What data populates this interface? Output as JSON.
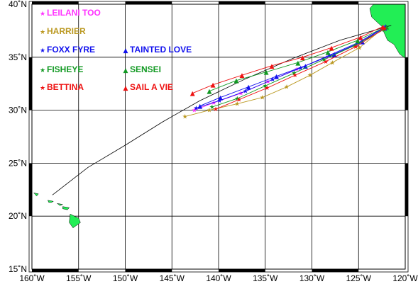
{
  "map": {
    "lon_range": [
      -160,
      -120
    ],
    "lat_range": [
      15,
      40
    ],
    "land_color": "#22ee55",
    "frame_color": "#000000",
    "gridline_color": "#000000"
  },
  "ticks": {
    "x": [
      {
        "value": -160,
        "label": "160˚W"
      },
      {
        "value": -155,
        "label": "155˚W"
      },
      {
        "value": -150,
        "label": "150˚W"
      },
      {
        "value": -145,
        "label": "145˚W"
      },
      {
        "value": -140,
        "label": "140˚W"
      },
      {
        "value": -135,
        "label": "135˚W"
      },
      {
        "value": -130,
        "label": "130˚W"
      },
      {
        "value": -125,
        "label": "125˚W"
      },
      {
        "value": -120,
        "label": "120˚W"
      }
    ],
    "y": [
      {
        "value": 40,
        "label": "40˚N"
      },
      {
        "value": 35,
        "label": "35˚N"
      },
      {
        "value": 30,
        "label": "30˚N"
      },
      {
        "value": 25,
        "label": "25˚N"
      },
      {
        "value": 20,
        "label": "20˚N"
      },
      {
        "value": 15,
        "label": "15˚N"
      }
    ]
  },
  "legend": [
    {
      "name": "LEILANI TOO",
      "color": "#ff33ff",
      "symbol": "star"
    },
    {
      "name": "HARRIER",
      "color": "#bb9922",
      "symbol": "star"
    },
    {
      "name": "FOXX FYRE",
      "color": "#1111ee",
      "symbol": "star"
    },
    {
      "name": "TAINTED LOVE",
      "color": "#1111ee",
      "symbol": "triangle"
    },
    {
      "name": "FISHEYE",
      "color": "#119922",
      "symbol": "star"
    },
    {
      "name": "SENSEI",
      "color": "#119922",
      "symbol": "triangle"
    },
    {
      "name": "BETTINA",
      "color": "#ee1111",
      "symbol": "star"
    },
    {
      "name": "SAIL A VIE",
      "color": "#ee1111",
      "symbol": "triangle"
    }
  ],
  "chart_data": {
    "type": "scatter",
    "great_circle": [
      [
        -121.5,
        38.0
      ],
      [
        -127,
        36.6
      ],
      [
        -132,
        34.9
      ],
      [
        -137,
        33.0
      ],
      [
        -142,
        30.9
      ],
      [
        -146,
        28.9
      ],
      [
        -150,
        26.7
      ],
      [
        -154,
        24.6
      ],
      [
        -157.8,
        22.0
      ]
    ],
    "series": [
      {
        "name": "LEILANI TOO",
        "points": [
          [
            -122.3,
            37.8
          ],
          [
            -125.2,
            36.2
          ],
          [
            -128.4,
            35.0
          ],
          [
            -131.6,
            33.9
          ],
          [
            -134.7,
            32.7
          ],
          [
            -137.6,
            31.6
          ],
          [
            -140.5,
            30.7
          ],
          [
            -142.6,
            30.0
          ]
        ]
      },
      {
        "name": "HARRIER",
        "points": [
          [
            -122.4,
            37.7
          ],
          [
            -124.9,
            35.9
          ],
          [
            -127.8,
            34.5
          ],
          [
            -130.2,
            33.3
          ],
          [
            -132.7,
            32.2
          ],
          [
            -135.3,
            31.2
          ],
          [
            -138.0,
            30.6
          ],
          [
            -141.0,
            30.0
          ],
          [
            -143.6,
            29.4
          ]
        ]
      },
      {
        "name": "FOXX FYRE",
        "points": [
          [
            -122.1,
            37.9
          ],
          [
            -125.0,
            36.4
          ],
          [
            -128.1,
            35.2
          ],
          [
            -131.2,
            34.0
          ],
          [
            -134.2,
            32.9
          ],
          [
            -137.1,
            31.8
          ],
          [
            -139.9,
            30.9
          ],
          [
            -142.4,
            30.2
          ]
        ]
      },
      {
        "name": "TAINTED LOVE",
        "points": [
          [
            -122.2,
            37.8
          ],
          [
            -124.6,
            36.5
          ],
          [
            -127.6,
            35.3
          ],
          [
            -130.7,
            34.2
          ],
          [
            -133.8,
            33.2
          ],
          [
            -136.8,
            32.2
          ],
          [
            -139.8,
            31.2
          ],
          [
            -142.0,
            30.4
          ]
        ]
      },
      {
        "name": "FISHEYE",
        "points": [
          [
            -122.3,
            37.6
          ],
          [
            -125.4,
            36.1
          ],
          [
            -128.7,
            34.8
          ],
          [
            -131.9,
            33.5
          ],
          [
            -135.0,
            32.3
          ],
          [
            -138.0,
            31.1
          ],
          [
            -140.7,
            30.3
          ]
        ]
      },
      {
        "name": "SENSEI",
        "points": [
          [
            -122.0,
            37.9
          ],
          [
            -125.1,
            36.6
          ],
          [
            -128.3,
            35.5
          ],
          [
            -131.5,
            34.5
          ],
          [
            -134.9,
            33.6
          ],
          [
            -138.1,
            32.8
          ],
          [
            -141.0,
            31.8
          ]
        ]
      },
      {
        "name": "BETTINA",
        "points": [
          [
            -122.2,
            37.7
          ],
          [
            -125.3,
            36.0
          ],
          [
            -128.5,
            34.6
          ],
          [
            -131.8,
            33.3
          ],
          [
            -134.8,
            32.1
          ],
          [
            -137.8,
            31.0
          ],
          [
            -140.3,
            30.1
          ]
        ]
      },
      {
        "name": "SAIL A VIE",
        "points": [
          [
            -122.4,
            37.9
          ],
          [
            -124.8,
            36.9
          ],
          [
            -127.9,
            35.9
          ],
          [
            -131.0,
            35.0
          ],
          [
            -134.3,
            34.2
          ],
          [
            -137.5,
            33.3
          ],
          [
            -140.6,
            32.4
          ],
          [
            -142.8,
            31.6
          ]
        ]
      }
    ],
    "land": {
      "california": [
        [
          -123.4,
          40
        ],
        [
          -120,
          40
        ],
        [
          -120,
          34.9
        ],
        [
          -120.6,
          35.3
        ],
        [
          -121.2,
          36.2
        ],
        [
          -121.9,
          36.6
        ],
        [
          -122.4,
          37.6
        ],
        [
          -122.5,
          37.9
        ],
        [
          -123.0,
          38.3
        ],
        [
          -123.6,
          38.8
        ],
        [
          -123.8,
          39.6
        ]
      ],
      "hawaii": [
        [
          [
            -155.9,
            20.2
          ],
          [
            -155.0,
            19.8
          ],
          [
            -154.8,
            19.4
          ],
          [
            -155.6,
            18.9
          ],
          [
            -156.0,
            19.4
          ]
        ],
        [
          [
            -156.7,
            20.9
          ],
          [
            -156.0,
            20.8
          ],
          [
            -156.2,
            20.6
          ],
          [
            -156.7,
            20.7
          ]
        ],
        [
          [
            -157.3,
            21.2
          ],
          [
            -156.7,
            21.1
          ],
          [
            -157.0,
            21.0
          ]
        ],
        [
          [
            -158.3,
            21.5
          ],
          [
            -157.7,
            21.4
          ],
          [
            -157.9,
            21.3
          ],
          [
            -158.2,
            21.3
          ]
        ],
        [
          [
            -159.8,
            22.2
          ],
          [
            -159.3,
            22.1
          ],
          [
            -159.5,
            21.9
          ]
        ]
      ]
    }
  }
}
